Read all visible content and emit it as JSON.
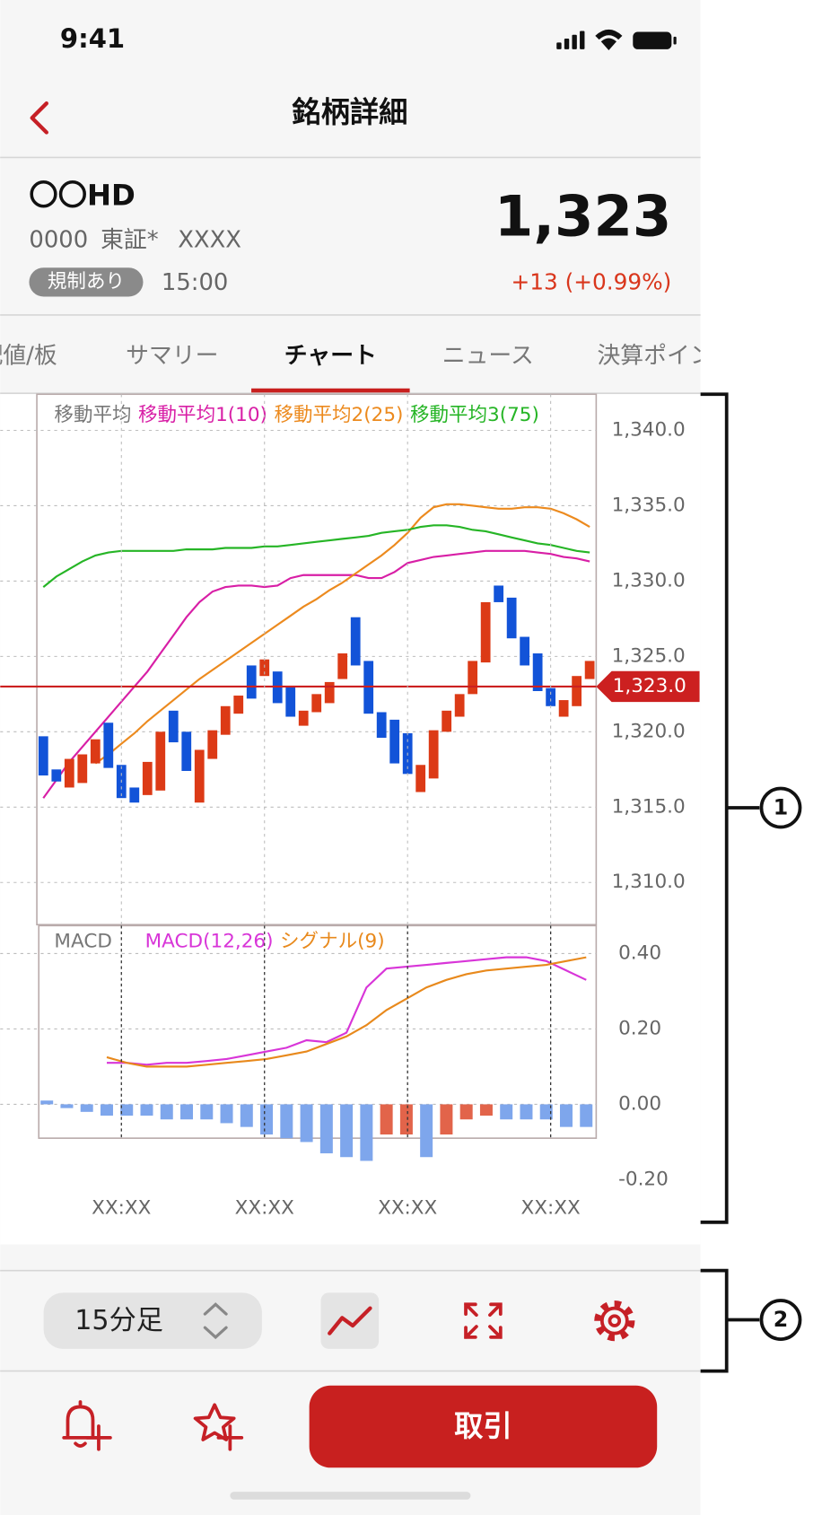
{
  "status_bar": {
    "time": "9:41"
  },
  "header": {
    "title": "銘柄詳細"
  },
  "stock": {
    "name": "〇〇HD",
    "code": "0000",
    "market": "東証*",
    "extra": "XXXX",
    "badge": "規制あり",
    "time": "15:00",
    "price": "1,323",
    "change": "+13 (+0.99%)"
  },
  "tabs": [
    "気配値/板",
    "サマリー",
    "チャート",
    "ニュース",
    "決算ポイント"
  ],
  "selected_tab": 2,
  "chart_data": [
    {
      "type": "candlestick",
      "legend_title": "移動平均",
      "categories": [
        null,
        null,
        null,
        null,
        null,
        null,
        "XX:XX",
        null,
        null,
        null,
        null,
        null,
        null,
        null,
        null,
        null,
        null,
        "XX:XX",
        null,
        null,
        null,
        null,
        null,
        null,
        null,
        null,
        null,
        null,
        "XX:XX",
        null,
        null,
        null,
        null,
        null,
        null,
        null,
        null,
        null,
        null,
        "XX:XX",
        null,
        null,
        null
      ],
      "open": [
        1319.7,
        1317.5,
        1316.3,
        1316.6,
        1317.9,
        1320.6,
        1317.8,
        1316.3,
        1315.8,
        1316.1,
        1321.4,
        1320.0,
        1315.3,
        1318.2,
        1319.8,
        1321.2,
        1324.4,
        1323.7,
        1324.0,
        1323.0,
        1320.4,
        1321.3,
        1321.9,
        1323.5,
        1327.6,
        1324.7,
        1321.3,
        1320.8,
        1319.9,
        1316.0,
        1316.9,
        1320.0,
        1321.0,
        1322.5,
        1324.6,
        1329.7,
        1328.9,
        1326.3,
        1325.2,
        1322.9,
        1321.0,
        1321.7,
        1323.5
      ],
      "close": [
        1317.1,
        1316.7,
        1318.2,
        1318.5,
        1319.5,
        1317.6,
        1315.6,
        1315.3,
        1318.0,
        1320.0,
        1319.3,
        1317.4,
        1318.8,
        1320.1,
        1321.7,
        1322.4,
        1322.2,
        1324.8,
        1321.9,
        1321.0,
        1321.4,
        1322.5,
        1323.3,
        1325.2,
        1324.4,
        1321.2,
        1319.6,
        1317.9,
        1317.2,
        1317.8,
        1320.1,
        1321.4,
        1322.5,
        1324.7,
        1328.6,
        1328.6,
        1326.2,
        1324.4,
        1322.7,
        1321.7,
        1322.1,
        1323.7,
        1324.7
      ],
      "up_color": "#dc3a16",
      "down_color": "#1253d8",
      "series": [
        {
          "name": "移動平均1(10)",
          "color": "#d81fa6",
          "values": [
            1315.6,
            1316.8,
            1318.0,
            1319.0,
            1320.0,
            1321.0,
            1322.0,
            1323.0,
            1324.0,
            1325.2,
            1326.4,
            1327.6,
            1328.6,
            1329.3,
            1329.6,
            1329.7,
            1329.7,
            1329.6,
            1329.7,
            1330.2,
            1330.4,
            1330.4,
            1330.4,
            1330.4,
            1330.4,
            1330.2,
            1330.2,
            1330.6,
            1331.2,
            1331.4,
            1331.6,
            1331.7,
            1331.8,
            1331.9,
            1332.0,
            1332.0,
            1332.0,
            1332.0,
            1331.9,
            1331.8,
            1331.6,
            1331.5,
            1331.3
          ]
        },
        {
          "name": "移動平均2(25)",
          "color": "#ec8a1e",
          "values": [
            null,
            null,
            null,
            null,
            1317.9,
            1318.5,
            1319.2,
            1319.9,
            1320.7,
            1321.4,
            1322.1,
            1322.8,
            1323.5,
            1324.1,
            1324.7,
            1325.3,
            1325.9,
            1326.5,
            1327.1,
            1327.7,
            1328.3,
            1328.8,
            1329.4,
            1329.9,
            1330.5,
            1331.1,
            1331.7,
            1332.4,
            1333.2,
            1334.2,
            1334.9,
            1335.1,
            1335.1,
            1335.0,
            1334.9,
            1334.8,
            1334.8,
            1334.9,
            1334.9,
            1334.8,
            1334.5,
            1334.1,
            1333.6
          ]
        },
        {
          "name": "移動平均3(75)",
          "color": "#26b526",
          "values": [
            1329.6,
            1330.3,
            1330.8,
            1331.3,
            1331.7,
            1331.9,
            1332.0,
            1332.0,
            1332.0,
            1332.0,
            1332.0,
            1332.1,
            1332.1,
            1332.1,
            1332.2,
            1332.2,
            1332.2,
            1332.3,
            1332.3,
            1332.4,
            1332.5,
            1332.6,
            1332.7,
            1332.8,
            1332.9,
            1333.0,
            1333.2,
            1333.3,
            1333.4,
            1333.6,
            1333.7,
            1333.7,
            1333.6,
            1333.4,
            1333.3,
            1333.1,
            1332.9,
            1332.7,
            1332.5,
            1332.4,
            1332.2,
            1332.0,
            1331.9
          ]
        }
      ],
      "ylim": [
        1307.2,
        1342.4
      ],
      "yticks": [
        {
          "value": 1310,
          "label": "1,310.0"
        },
        {
          "value": 1315,
          "label": "1,315.0"
        },
        {
          "value": 1320,
          "label": "1,320.0"
        },
        {
          "value": 1325,
          "label": "1,325.0"
        },
        {
          "value": 1330,
          "label": "1,330.0"
        },
        {
          "value": 1335,
          "label": "1,335.0"
        },
        {
          "value": 1340,
          "label": "1,340.0"
        }
      ],
      "current": {
        "value": 1323,
        "label": "1,323.0",
        "color": "#cc2020"
      },
      "grid": true
    },
    {
      "type": "macd",
      "title": "MACD",
      "values": [
        0.01,
        -0.01,
        -0.02,
        -0.03,
        -0.03,
        -0.03,
        -0.04,
        -0.04,
        -0.04,
        -0.05,
        -0.06,
        -0.08,
        -0.09,
        -0.1,
        -0.13,
        -0.14,
        -0.15,
        -0.08,
        -0.08,
        -0.14,
        -0.08,
        -0.04,
        -0.03,
        -0.04,
        -0.04,
        -0.04,
        -0.06,
        -0.06
      ],
      "colors": [
        "#7ea6ec",
        "#7ea6ec",
        "#7ea6ec",
        "#7ea6ec",
        "#7ea6ec",
        "#7ea6ec",
        "#7ea6ec",
        "#7ea6ec",
        "#7ea6ec",
        "#7ea6ec",
        "#7ea6ec",
        "#7ea6ec",
        "#7ea6ec",
        "#7ea6ec",
        "#7ea6ec",
        "#7ea6ec",
        "#7ea6ec",
        "#e2644a",
        "#e2644a",
        "#7ea6ec",
        "#e2644a",
        "#e2644a",
        "#e2644a",
        "#7ea6ec",
        "#7ea6ec",
        "#7ea6ec",
        "#7ea6ec",
        "#7ea6ec"
      ],
      "series": [
        {
          "name": "MACD(12,26)",
          "color": "#d835d8",
          "values": [
            null,
            null,
            null,
            0.11,
            0.11,
            0.105,
            0.11,
            0.11,
            0.115,
            0.12,
            0.13,
            0.14,
            0.15,
            0.17,
            0.165,
            0.19,
            0.31,
            0.36,
            0.365,
            0.37,
            0.375,
            0.38,
            0.385,
            0.39,
            0.39,
            0.38,
            0.355,
            0.33
          ]
        },
        {
          "name": "シグナル(9)",
          "color": "#e8891c",
          "values": [
            null,
            null,
            null,
            0.125,
            0.11,
            0.1,
            0.1,
            0.1,
            0.105,
            0.11,
            0.115,
            0.12,
            0.13,
            0.14,
            0.16,
            0.18,
            0.21,
            0.25,
            0.28,
            0.31,
            0.33,
            0.345,
            0.355,
            0.36,
            0.365,
            0.37,
            0.38,
            0.39
          ]
        }
      ],
      "ylim": [
        -0.2,
        0.474
      ],
      "yticks": [
        {
          "value": -0.2,
          "label": "-0.20"
        },
        {
          "value": 0,
          "label": "0.00"
        },
        {
          "value": 0.2,
          "label": "0.20"
        },
        {
          "value": 0.4,
          "label": "0.40"
        }
      ],
      "grid": true
    }
  ],
  "toolbar": {
    "timeframe": "15分足"
  },
  "actions": {
    "trade": "取引"
  },
  "annotations": [
    "1",
    "2"
  ]
}
